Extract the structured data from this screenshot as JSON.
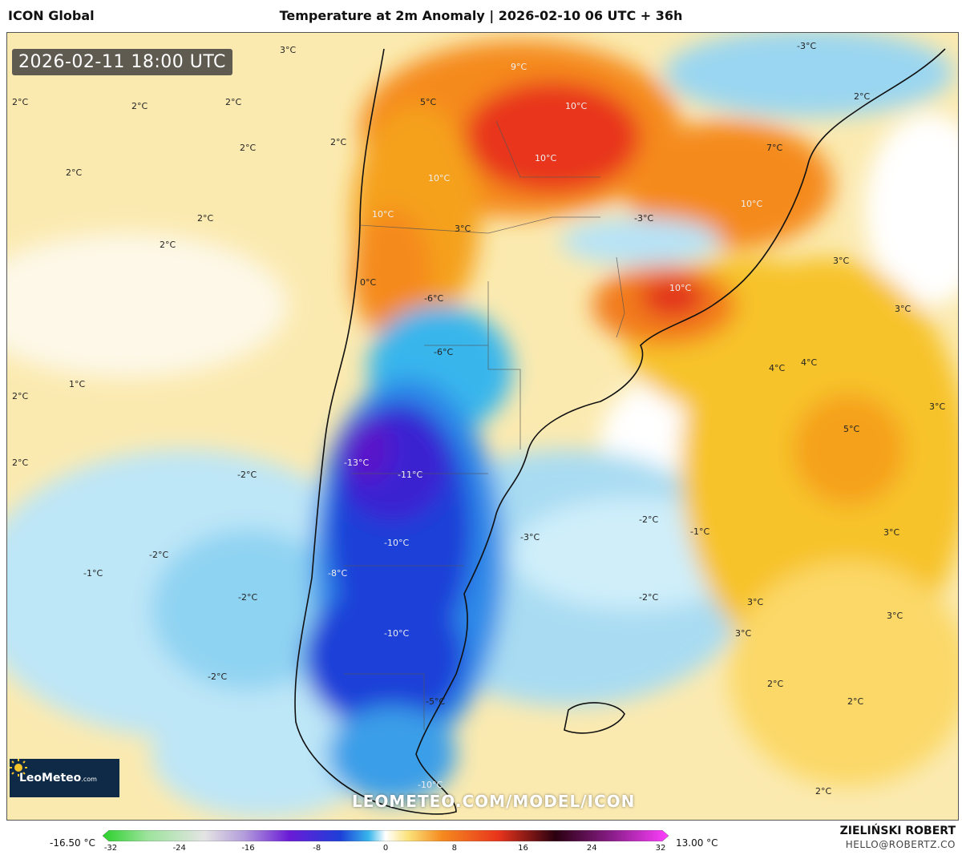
{
  "header": {
    "model": "ICON Global",
    "title": "Temperature at 2m Anomaly | 2026-02-10 06 UTC + 36h"
  },
  "valid_time": "2026-02-11 18:00 UTC",
  "brand": {
    "name": "LeoMeteo",
    "suffix": ".com",
    "watermark": "LEOMETEO.COM/MODEL/ICON"
  },
  "author": {
    "name": "ZIELIŃSKI ROBERT",
    "email": "HELLO@ROBERTZ.CO"
  },
  "colorbar": {
    "min_label": "-16.50 °C",
    "max_label": "13.00 °C",
    "ticks": [
      "-32",
      "-24",
      "-16",
      "-8",
      "0",
      "8",
      "16",
      "24",
      "32"
    ],
    "range": [
      -32,
      32
    ]
  },
  "map_labels": [
    {
      "t": "3°C"
    },
    {
      "t": "2°C"
    },
    {
      "t": "2°C"
    },
    {
      "t": "2°C"
    },
    {
      "t": "2°C"
    },
    {
      "t": "2°C"
    },
    {
      "t": "2°C"
    },
    {
      "t": "2°C"
    },
    {
      "t": "2°C"
    },
    {
      "t": "1°C"
    },
    {
      "t": "2°C"
    },
    {
      "t": "2°C"
    },
    {
      "t": "-2°C"
    },
    {
      "t": "-2°C"
    },
    {
      "t": "-1°C"
    },
    {
      "t": "-2°C"
    },
    {
      "t": "-2°C"
    },
    {
      "t": "5°C"
    },
    {
      "t": "9°C"
    },
    {
      "t": "10°C"
    },
    {
      "t": "10°C"
    },
    {
      "t": "10°C"
    },
    {
      "t": "10°C"
    },
    {
      "t": "7°C"
    },
    {
      "t": "10°C"
    },
    {
      "t": "-3°C"
    },
    {
      "t": "3°C"
    },
    {
      "t": "0°C"
    },
    {
      "t": "-6°C"
    },
    {
      "t": "-6°C"
    },
    {
      "t": "-13°C"
    },
    {
      "t": "-11°C"
    },
    {
      "t": "-10°C"
    },
    {
      "t": "-8°C"
    },
    {
      "t": "-10°C"
    },
    {
      "t": "-5°C"
    },
    {
      "t": "-10°C"
    },
    {
      "t": "-3°C"
    },
    {
      "t": "-2°C"
    },
    {
      "t": "-1°C"
    },
    {
      "t": "-2°C"
    },
    {
      "t": "-3°C"
    },
    {
      "t": "2°C"
    },
    {
      "t": "3°C"
    },
    {
      "t": "3°C"
    },
    {
      "t": "4°C"
    },
    {
      "t": "4°C"
    },
    {
      "t": "3°C"
    },
    {
      "t": "5°C"
    },
    {
      "t": "3°C"
    },
    {
      "t": "3°C"
    },
    {
      "t": "3°C"
    },
    {
      "t": "3°C"
    },
    {
      "t": "2°C"
    },
    {
      "t": "2°C"
    },
    {
      "t": "2°C"
    },
    {
      "t": "10°C"
    }
  ],
  "colors": {
    "warm_strong": "#e8341c",
    "warm": "#f58a1f",
    "warm_light": "#f7c32a",
    "pale": "#fde9a6",
    "cold_light": "#a9dcf2",
    "cold": "#38b6ec",
    "cold_strong": "#1d3fd8",
    "cold_extreme": "#5a18c9"
  }
}
